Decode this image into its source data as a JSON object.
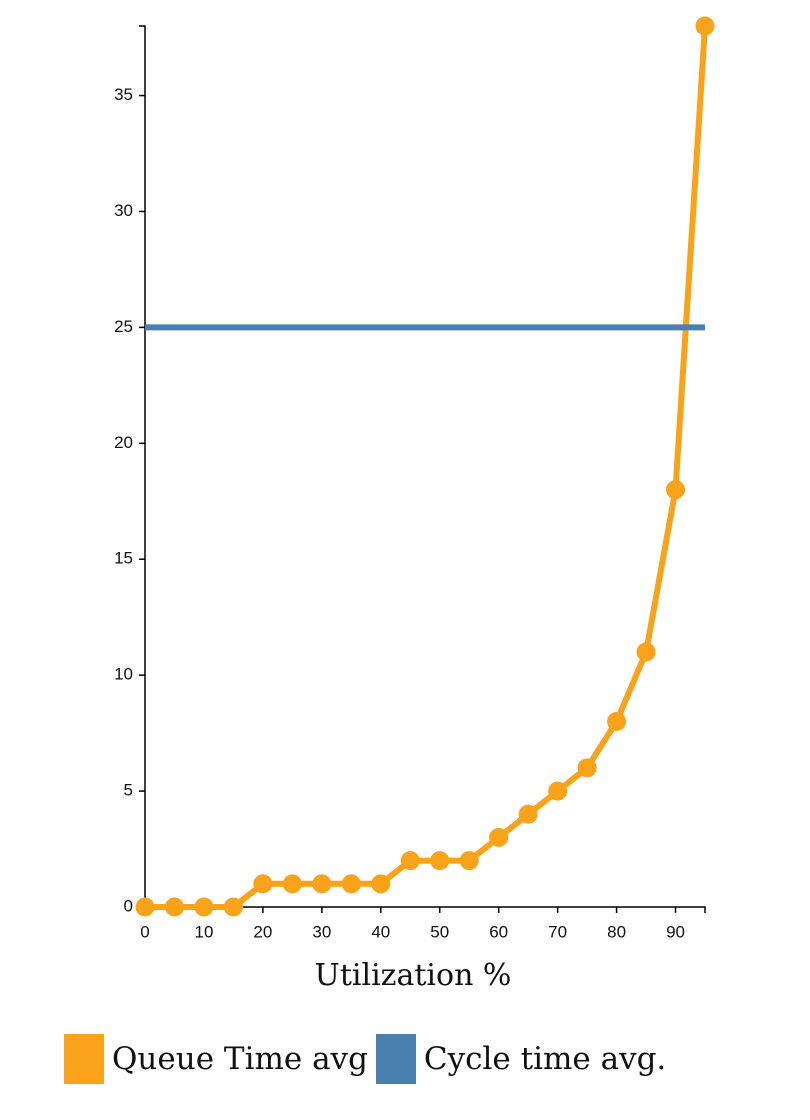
{
  "chart_data": {
    "type": "line",
    "title": "",
    "xlabel": "Utilization %",
    "ylabel": "",
    "xlim": [
      0,
      95
    ],
    "ylim": [
      0,
      38
    ],
    "x_ticks": [
      0,
      10,
      20,
      30,
      40,
      50,
      60,
      70,
      80,
      90
    ],
    "y_ticks": [
      0,
      5,
      10,
      15,
      20,
      25,
      30,
      35
    ],
    "grid": false,
    "legend_position": "bottom",
    "series": [
      {
        "name": "Queue Time avg",
        "color": "#f9a21a",
        "markers": true,
        "x": [
          0,
          5,
          10,
          15,
          20,
          25,
          30,
          35,
          40,
          45,
          50,
          55,
          60,
          65,
          70,
          75,
          80,
          85,
          90,
          95
        ],
        "values": [
          0,
          0,
          0,
          0,
          1,
          1,
          1,
          1,
          1,
          2,
          2,
          2,
          3,
          4,
          5,
          6,
          8,
          11,
          18,
          38
        ]
      },
      {
        "name": "Cycle time avg.",
        "color": "#4a7fb1",
        "markers": false,
        "x": [
          0,
          95
        ],
        "values": [
          25,
          25
        ]
      }
    ]
  }
}
